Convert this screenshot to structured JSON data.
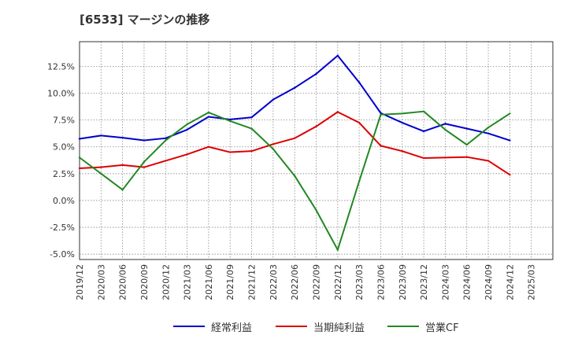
{
  "title": "[6533]  マージンの推移",
  "chart_data": {
    "type": "line",
    "title": "[6533]  マージンの推移",
    "xlabel": "",
    "ylabel": "",
    "ylim": [
      -5.5,
      14.8
    ],
    "y_ticks": [
      -5.0,
      -2.5,
      0.0,
      2.5,
      5.0,
      7.5,
      10.0,
      12.5
    ],
    "y_tick_labels": [
      "-5.0%",
      "-2.5%",
      "0.0%",
      "2.5%",
      "5.0%",
      "7.5%",
      "10.0%",
      "12.5%"
    ],
    "x_tick_labels": [
      "2019/12",
      "2020/03",
      "2020/06",
      "2020/09",
      "2020/12",
      "2021/03",
      "2021/06",
      "2021/09",
      "2021/12",
      "2022/03",
      "2022/06",
      "2022/09",
      "2022/12",
      "2023/03",
      "2023/06",
      "2023/09",
      "2023/12",
      "2024/03",
      "2024/06",
      "2024/09",
      "2024/12",
      "2025/03"
    ],
    "grid": true,
    "legend_position": "bottom",
    "series": [
      {
        "name": "経常利益",
        "color": "#0000cc",
        "values": [
          5.75,
          6.05,
          5.85,
          5.6,
          5.8,
          6.6,
          7.8,
          7.55,
          7.75,
          9.4,
          10.5,
          11.8,
          13.5,
          11.0,
          8.15,
          7.25,
          6.45,
          7.15,
          6.7,
          6.25,
          5.6,
          null
        ]
      },
      {
        "name": "当期純利益",
        "color": "#dd0000",
        "values": [
          3.0,
          3.1,
          3.3,
          3.1,
          3.7,
          4.3,
          5.0,
          4.5,
          4.6,
          5.25,
          5.8,
          6.9,
          8.25,
          7.25,
          5.1,
          4.6,
          3.95,
          4.0,
          4.05,
          3.7,
          2.4,
          null
        ]
      },
      {
        "name": "営業CF",
        "color": "#228822",
        "values": [
          4.0,
          2.5,
          1.0,
          3.6,
          5.6,
          7.1,
          8.2,
          7.4,
          6.7,
          4.8,
          2.3,
          -0.9,
          -4.6,
          1.8,
          8.0,
          8.1,
          8.3,
          6.6,
          5.2,
          6.8,
          8.1,
          null
        ]
      }
    ]
  }
}
